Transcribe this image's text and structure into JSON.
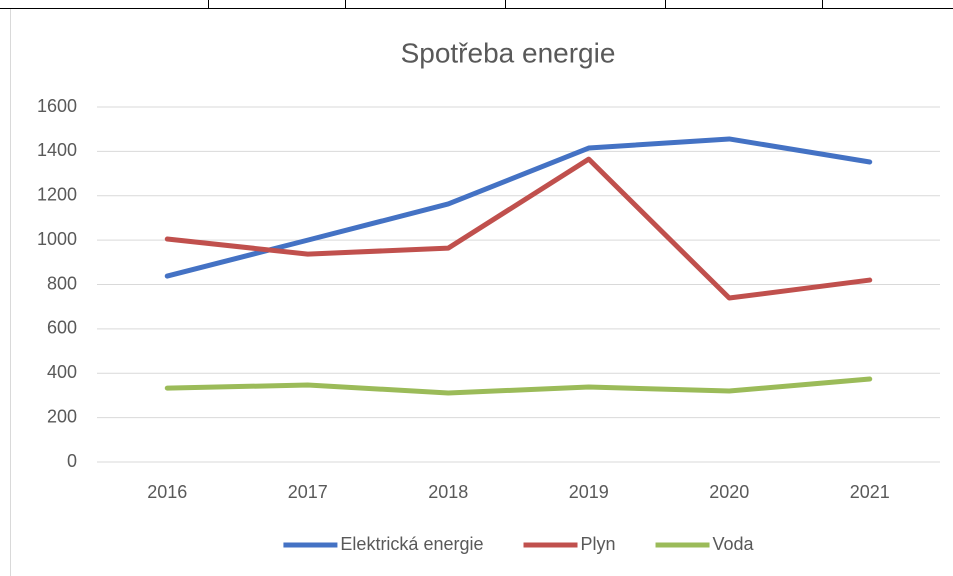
{
  "chart_data": {
    "type": "line",
    "title": "Spotřeba energie",
    "categories": [
      "2016",
      "2017",
      "2018",
      "2019",
      "2020",
      "2021"
    ],
    "series": [
      {
        "name": "Elektrická energie",
        "color": "#4472c4",
        "values": [
          838,
          1000,
          1163,
          1415,
          1456,
          1352
        ]
      },
      {
        "name": "Plyn",
        "color": "#c0504d",
        "values": [
          1005,
          937,
          964,
          1365,
          739,
          820
        ]
      },
      {
        "name": "Voda",
        "color": "#9bbb59",
        "values": [
          333,
          347,
          311,
          338,
          320,
          374
        ]
      }
    ],
    "ylim": [
      0,
      1600
    ],
    "yticks": [
      0,
      200,
      400,
      600,
      800,
      1000,
      1200,
      1400,
      1600
    ],
    "grid": true,
    "legend": "bottom"
  }
}
